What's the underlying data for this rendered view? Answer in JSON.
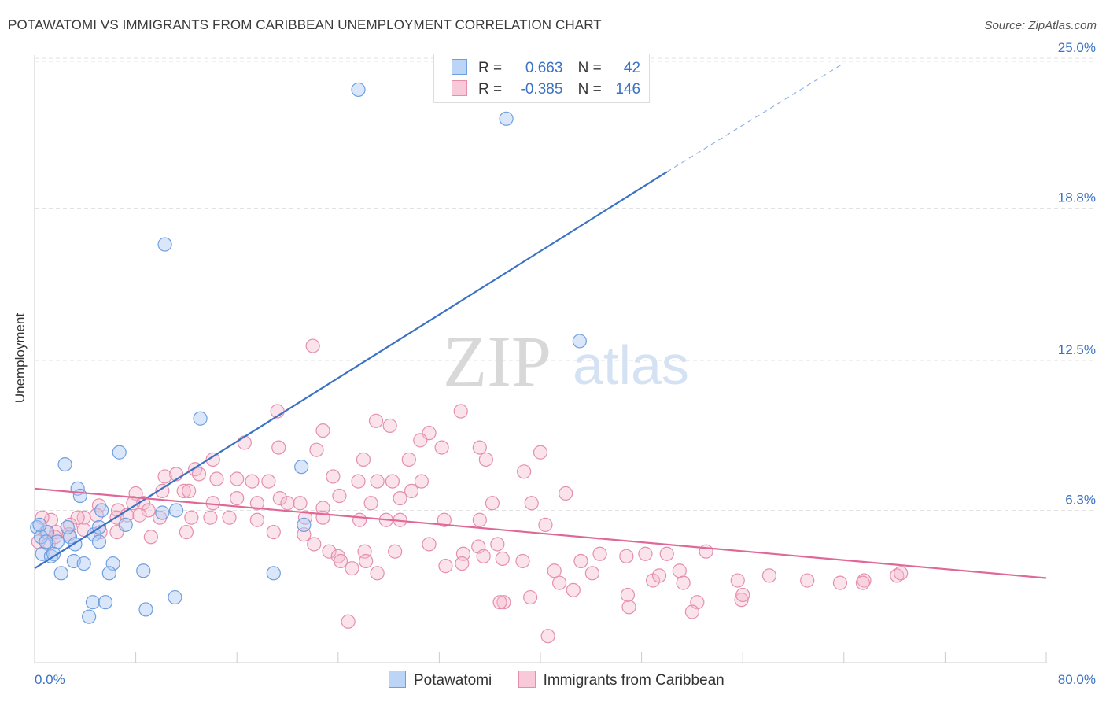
{
  "title": "POTAWATOMI VS IMMIGRANTS FROM CARIBBEAN UNEMPLOYMENT CORRELATION CHART",
  "source": "Source: ZipAtlas.com",
  "watermark": {
    "zip": "ZIP",
    "atlas": "atlas"
  },
  "legend": {
    "rows": [
      {
        "r_label": "R =",
        "r_value": "0.663",
        "n_label": "N =",
        "n_value": "42",
        "fill": "#bcd4f5",
        "stroke": "#6f9fe0"
      },
      {
        "r_label": "R =",
        "r_value": "-0.385",
        "n_label": "N =",
        "n_value": "146",
        "fill": "#f8c9d8",
        "stroke": "#e58fac"
      }
    ]
  },
  "bottom_legend": [
    {
      "label": "Potawatomi",
      "fill": "#bcd4f5",
      "stroke": "#6f9fe0"
    },
    {
      "label": "Immigrants from Caribbean",
      "fill": "#f8c9d8",
      "stroke": "#e58fac"
    }
  ],
  "chart_data": {
    "type": "scatter",
    "title": "POTAWATOMI VS IMMIGRANTS FROM CARIBBEAN UNEMPLOYMENT CORRELATION CHART",
    "xlabel": "",
    "ylabel": "Unemployment",
    "xlim": [
      0,
      80
    ],
    "ylim": [
      0,
      25.8
    ],
    "x_tick_labels": [
      "0.0%",
      "80.0%"
    ],
    "y_ticks": [
      6.3,
      12.5,
      18.8,
      25.0
    ],
    "y_tick_labels": [
      "6.3%",
      "12.5%",
      "18.8%",
      "25.0%"
    ],
    "grid": "horizontal dashed",
    "legend_position": "top-center",
    "colors": {
      "blue": "#3b72c4",
      "pink": "#e06897",
      "axis": "#3b72c4"
    },
    "series": [
      {
        "name": "Potawatomi",
        "color": "#6f9fe0",
        "trend": {
          "x": [
            0,
            50
          ],
          "y": [
            3.9,
            20.3
          ],
          "dash_to": [
            64,
            24.8
          ]
        },
        "points": [
          [
            25.6,
            23.7
          ],
          [
            37.3,
            22.5
          ],
          [
            10.3,
            17.3
          ],
          [
            43.1,
            13.3
          ],
          [
            13.1,
            10.1
          ],
          [
            6.7,
            8.7
          ],
          [
            2.4,
            8.2
          ],
          [
            21.1,
            8.1
          ],
          [
            3.4,
            7.2
          ],
          [
            3.6,
            6.9
          ],
          [
            5.3,
            6.3
          ],
          [
            10.1,
            6.2
          ],
          [
            11.2,
            6.3
          ],
          [
            7.2,
            5.7
          ],
          [
            21.3,
            5.7
          ],
          [
            0.2,
            5.6
          ],
          [
            1.0,
            5.4
          ],
          [
            0.5,
            5.2
          ],
          [
            2.8,
            5.2
          ],
          [
            4.7,
            5.3
          ],
          [
            5.1,
            5.6
          ],
          [
            1.8,
            5.0
          ],
          [
            3.2,
            4.9
          ],
          [
            5.1,
            5.0
          ],
          [
            0.6,
            4.5
          ],
          [
            1.3,
            4.4
          ],
          [
            3.1,
            4.2
          ],
          [
            3.9,
            4.1
          ],
          [
            6.2,
            4.1
          ],
          [
            2.1,
            3.7
          ],
          [
            5.9,
            3.7
          ],
          [
            8.6,
            3.8
          ],
          [
            18.9,
            3.7
          ],
          [
            4.6,
            2.5
          ],
          [
            5.6,
            2.5
          ],
          [
            8.8,
            2.2
          ],
          [
            11.1,
            2.7
          ],
          [
            4.3,
            1.9
          ],
          [
            0.4,
            5.7
          ],
          [
            0.9,
            5.0
          ],
          [
            2.6,
            5.6
          ],
          [
            1.5,
            4.5
          ]
        ]
      },
      {
        "name": "Immigrants from Caribbean",
        "color": "#e58fac",
        "trend": {
          "x": [
            0,
            80
          ],
          "y": [
            7.2,
            3.5
          ]
        },
        "points": [
          [
            22.0,
            13.1
          ],
          [
            19.2,
            10.4
          ],
          [
            27.0,
            10.0
          ],
          [
            33.7,
            10.4
          ],
          [
            28.1,
            9.8
          ],
          [
            22.8,
            9.6
          ],
          [
            31.2,
            9.5
          ],
          [
            30.5,
            9.2
          ],
          [
            16.6,
            9.1
          ],
          [
            19.3,
            8.9
          ],
          [
            22.3,
            8.8
          ],
          [
            32.2,
            8.9
          ],
          [
            35.2,
            8.9
          ],
          [
            40.0,
            8.7
          ],
          [
            26.0,
            8.4
          ],
          [
            29.6,
            8.4
          ],
          [
            35.7,
            8.4
          ],
          [
            14.1,
            8.4
          ],
          [
            12.7,
            8.0
          ],
          [
            11.2,
            7.8
          ],
          [
            13.0,
            7.8
          ],
          [
            14.4,
            7.6
          ],
          [
            16.0,
            7.6
          ],
          [
            10.3,
            7.7
          ],
          [
            17.2,
            7.5
          ],
          [
            18.5,
            7.5
          ],
          [
            23.6,
            7.7
          ],
          [
            25.6,
            7.5
          ],
          [
            27.1,
            7.5
          ],
          [
            28.3,
            7.5
          ],
          [
            30.6,
            7.5
          ],
          [
            38.7,
            7.9
          ],
          [
            10.1,
            7.1
          ],
          [
            11.8,
            7.1
          ],
          [
            8.0,
            7.0
          ],
          [
            12.2,
            7.1
          ],
          [
            16.0,
            6.8
          ],
          [
            19.4,
            6.8
          ],
          [
            24.1,
            6.9
          ],
          [
            26.6,
            6.6
          ],
          [
            28.9,
            6.8
          ],
          [
            29.8,
            7.1
          ],
          [
            36.2,
            6.6
          ],
          [
            39.3,
            6.6
          ],
          [
            42.0,
            7.0
          ],
          [
            14.1,
            6.6
          ],
          [
            17.6,
            6.6
          ],
          [
            20.0,
            6.6
          ],
          [
            21.0,
            6.6
          ],
          [
            22.8,
            6.4
          ],
          [
            7.8,
            6.6
          ],
          [
            8.6,
            6.6
          ],
          [
            5.1,
            6.5
          ],
          [
            6.6,
            6.3
          ],
          [
            9.0,
            6.3
          ],
          [
            6.5,
            6.0
          ],
          [
            7.3,
            6.1
          ],
          [
            4.9,
            6.1
          ],
          [
            3.9,
            6.0
          ],
          [
            8.3,
            6.1
          ],
          [
            9.9,
            6.0
          ],
          [
            12.4,
            6.0
          ],
          [
            13.9,
            6.0
          ],
          [
            15.4,
            6.0
          ],
          [
            17.6,
            5.9
          ],
          [
            21.4,
            6.0
          ],
          [
            22.8,
            6.0
          ],
          [
            25.7,
            5.9
          ],
          [
            27.8,
            5.9
          ],
          [
            28.9,
            5.9
          ],
          [
            32.4,
            5.9
          ],
          [
            35.2,
            5.9
          ],
          [
            40.4,
            5.7
          ],
          [
            3.4,
            6.0
          ],
          [
            2.8,
            5.7
          ],
          [
            1.3,
            5.9
          ],
          [
            0.6,
            6.0
          ],
          [
            0.9,
            5.4
          ],
          [
            1.7,
            5.4
          ],
          [
            2.7,
            5.3
          ],
          [
            3.9,
            5.5
          ],
          [
            5.2,
            5.4
          ],
          [
            6.5,
            5.4
          ],
          [
            9.2,
            5.2
          ],
          [
            12.0,
            5.4
          ],
          [
            18.9,
            5.4
          ],
          [
            21.3,
            5.3
          ],
          [
            0.3,
            5.0
          ],
          [
            1.1,
            4.9
          ],
          [
            1.6,
            5.2
          ],
          [
            22.1,
            4.9
          ],
          [
            31.2,
            4.9
          ],
          [
            35.1,
            4.8
          ],
          [
            36.6,
            4.9
          ],
          [
            23.3,
            4.6
          ],
          [
            26.1,
            4.6
          ],
          [
            28.5,
            4.6
          ],
          [
            33.9,
            4.5
          ],
          [
            35.5,
            4.4
          ],
          [
            37.0,
            4.3
          ],
          [
            44.7,
            4.5
          ],
          [
            46.8,
            4.4
          ],
          [
            48.3,
            4.5
          ],
          [
            50.0,
            4.5
          ],
          [
            53.1,
            4.6
          ],
          [
            24.0,
            4.4
          ],
          [
            24.2,
            4.2
          ],
          [
            26.2,
            4.2
          ],
          [
            32.5,
            4.0
          ],
          [
            33.8,
            4.1
          ],
          [
            38.6,
            4.2
          ],
          [
            41.1,
            3.8
          ],
          [
            43.2,
            4.2
          ],
          [
            44.1,
            3.7
          ],
          [
            48.9,
            3.4
          ],
          [
            49.4,
            3.6
          ],
          [
            51.0,
            3.8
          ],
          [
            55.6,
            3.4
          ],
          [
            58.1,
            3.6
          ],
          [
            61.1,
            3.4
          ],
          [
            63.7,
            3.3
          ],
          [
            65.6,
            3.4
          ],
          [
            68.2,
            3.6
          ],
          [
            25.1,
            3.9
          ],
          [
            27.1,
            3.7
          ],
          [
            41.5,
            3.3
          ],
          [
            42.6,
            3.0
          ],
          [
            46.9,
            2.8
          ],
          [
            52.4,
            2.5
          ],
          [
            55.9,
            2.6
          ],
          [
            39.2,
            2.7
          ],
          [
            37.1,
            2.5
          ],
          [
            36.8,
            2.5
          ],
          [
            47.0,
            2.3
          ],
          [
            52.0,
            2.1
          ],
          [
            65.5,
            3.3
          ],
          [
            68.5,
            3.7
          ],
          [
            24.8,
            1.7
          ],
          [
            40.6,
            1.1
          ],
          [
            51.3,
            3.3
          ],
          [
            56.0,
            2.8
          ]
        ]
      }
    ]
  }
}
